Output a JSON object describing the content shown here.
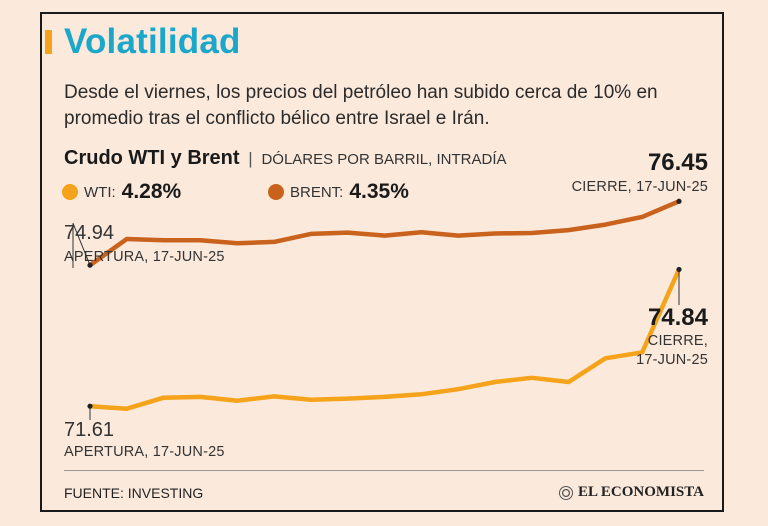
{
  "title": "Volatilidad",
  "subtitle": "Desde el viernes, los precios del petróleo han subido cerca de 10% en promedio tras el conflicto bélico entre Israel e Irán.",
  "chart_header": {
    "main": "Crudo WTI y Brent",
    "separator": "|",
    "unit": "DÓLARES POR BARRIL, INTRADÍA"
  },
  "legend": {
    "wti": {
      "name": "WTI:",
      "value": "4.28%",
      "color": "#f5a31a"
    },
    "brent": {
      "name": "BRENT:",
      "value": "4.35%",
      "color": "#c8621c"
    }
  },
  "annotations": {
    "brent_open_value": "74.94",
    "brent_open_label": "APERTURA, 17-JUN-25",
    "brent_close_value": "76.45",
    "brent_close_label": "CIERRE, 17-JUN-25",
    "wti_open_value": "71.61",
    "wti_open_label": "APERTURA, 17-JUN-25",
    "wti_close_value": "74.84",
    "wti_close_label_1": "CIERRE,",
    "wti_close_label_2": "17-JUN-25"
  },
  "source": "FUENTE: INVESTING",
  "brand": "EL ECONOMISTA",
  "chart_data": {
    "type": "line",
    "title": "Crudo WTI y Brent",
    "ylabel": "DÓLARES POR BARRIL, INTRADÍA",
    "grid": false,
    "ylim": [
      71.0,
      77.0
    ],
    "series": [
      {
        "name": "BRENT",
        "color": "#c8621c",
        "values": [
          74.94,
          75.56,
          75.53,
          75.53,
          75.46,
          75.49,
          75.68,
          75.71,
          75.64,
          75.72,
          75.64,
          75.69,
          75.7,
          75.77,
          75.9,
          76.08,
          76.45
        ]
      },
      {
        "name": "WTI",
        "color": "#f5a31a",
        "values": [
          71.61,
          71.55,
          71.81,
          71.83,
          71.74,
          71.84,
          71.76,
          71.79,
          71.83,
          71.89,
          72.01,
          72.18,
          72.28,
          72.18,
          72.74,
          72.88,
          74.84
        ]
      }
    ]
  }
}
